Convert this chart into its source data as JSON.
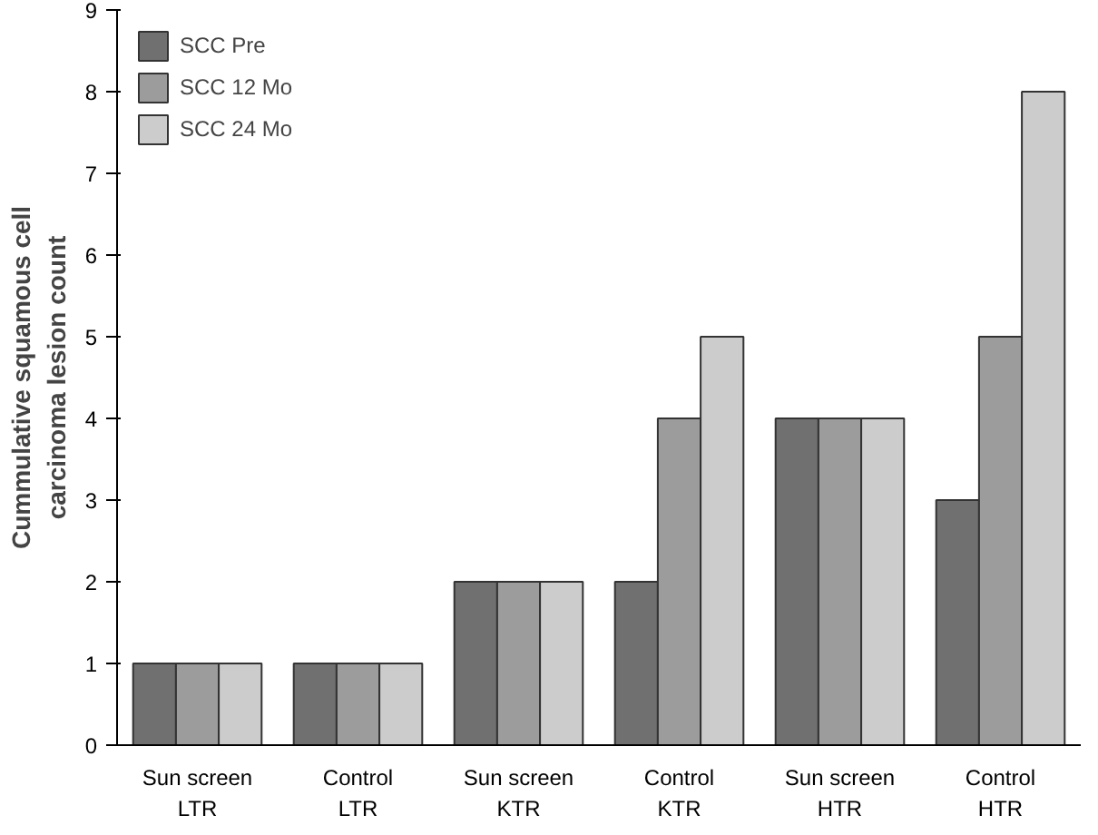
{
  "chart_data": {
    "type": "bar",
    "ylabel": "Cummulative squamous cell\ncarcinoma lesion count",
    "categories": [
      "Sun screen\nLTR",
      "Control\nLTR",
      "Sun screen\nKTR",
      "Control\nKTR",
      "Sun screen\nHTR",
      "Control\nHTR"
    ],
    "series": [
      {
        "name": "SCC Pre",
        "color": "#707070",
        "values": [
          1,
          1,
          2,
          2,
          4,
          3
        ]
      },
      {
        "name": "SCC 12 Mo",
        "color": "#9c9c9c",
        "values": [
          1,
          1,
          2,
          4,
          4,
          5
        ]
      },
      {
        "name": "SCC 24 Mo",
        "color": "#cccccc",
        "values": [
          1,
          1,
          2,
          5,
          4,
          8
        ]
      }
    ],
    "ylim": [
      0,
      9
    ],
    "yticks": [
      0,
      1,
      2,
      3,
      4,
      5,
      6,
      7,
      8,
      9
    ],
    "grid": false,
    "legend": "top left"
  }
}
